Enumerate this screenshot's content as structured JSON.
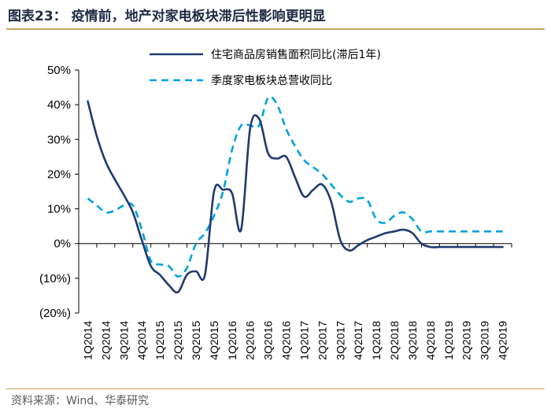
{
  "header": {
    "title": "图表23：  疫情前，地产对家电板块滞后性影响更明显"
  },
  "footer": {
    "source": "资料来源：Wind、华泰研究"
  },
  "chart_data": {
    "type": "line",
    "ylim": [
      -20,
      50
    ],
    "yticks": [
      "(20%)",
      "(10%)",
      "0%",
      "10%",
      "20%",
      "30%",
      "40%",
      "50%"
    ],
    "ytick_values": [
      -20,
      -10,
      0,
      10,
      20,
      30,
      40,
      50
    ],
    "categories": [
      "1Q2014",
      "2Q2014",
      "3Q2014",
      "4Q2014",
      "1Q2015",
      "2Q2015",
      "3Q2015",
      "4Q2015",
      "1Q2016",
      "2Q2016",
      "3Q2016",
      "4Q2016",
      "1Q2017",
      "2Q2017",
      "3Q2017",
      "4Q2017",
      "1Q2018",
      "2Q2018",
      "3Q2018",
      "4Q2018",
      "1Q2019",
      "2Q2019",
      "3Q2019",
      "4Q2019"
    ],
    "legend_position": "top",
    "series": [
      {
        "name": "住宅商品房销售面积同比(滞后1年)",
        "style": "solid",
        "color": "#1f3a6e",
        "x": [
          0,
          0.5,
          1,
          1.5,
          2,
          2.5,
          3,
          3.5,
          4,
          4.5,
          5,
          5.5,
          6,
          6.5,
          7,
          7.5,
          8,
          8.5,
          9,
          9.5,
          10,
          10.5,
          11,
          11.5,
          12,
          12.5,
          13,
          13.5,
          14,
          14.5,
          15,
          15.5,
          16,
          16.5,
          17,
          17.5,
          18,
          18.5,
          19,
          19.5,
          20,
          20.5,
          21,
          21.5,
          22,
          22.5,
          23
        ],
        "values": [
          41,
          31,
          23.5,
          18.5,
          14,
          9,
          1,
          -6.5,
          -9,
          -12,
          -14,
          -9,
          -8,
          -9,
          15,
          15.5,
          14.5,
          4,
          33,
          36,
          26,
          24.5,
          25,
          19,
          13.5,
          15.5,
          17,
          12,
          1,
          -2,
          -0.5,
          1,
          2,
          3,
          3.5,
          4,
          3,
          0,
          -1,
          -1,
          -1,
          -1,
          -1,
          -1,
          -1,
          -1,
          -1
        ]
      },
      {
        "name": "季度家电板块总营收同比",
        "style": "dashed",
        "color": "#00a0e0",
        "x": [
          0,
          0.5,
          1,
          1.5,
          2,
          2.5,
          3,
          3.5,
          4,
          4.5,
          5,
          5.5,
          6,
          6.5,
          7,
          7.5,
          8,
          8.5,
          9,
          9.5,
          10,
          10.5,
          11,
          11.5,
          12,
          12.5,
          13,
          13.5,
          14,
          14.5,
          15,
          15.5,
          16,
          16.5,
          17,
          17.5,
          18,
          18.5,
          19,
          19.5,
          20,
          20.5,
          21,
          21.5,
          22,
          22.5,
          23
        ],
        "values": [
          13,
          11,
          9,
          9.5,
          11,
          11,
          4,
          -5,
          -6,
          -6.5,
          -9.5,
          -7,
          0,
          3,
          8,
          15,
          27,
          34,
          34,
          34,
          42,
          40,
          33,
          28,
          24,
          22,
          20,
          17,
          14,
          12,
          13,
          12.5,
          7,
          6,
          8,
          9,
          7,
          3.5,
          3.5,
          3.5,
          3.5,
          3.5,
          3.5,
          3.5,
          3.5,
          3.5,
          3.5
        ]
      }
    ]
  }
}
